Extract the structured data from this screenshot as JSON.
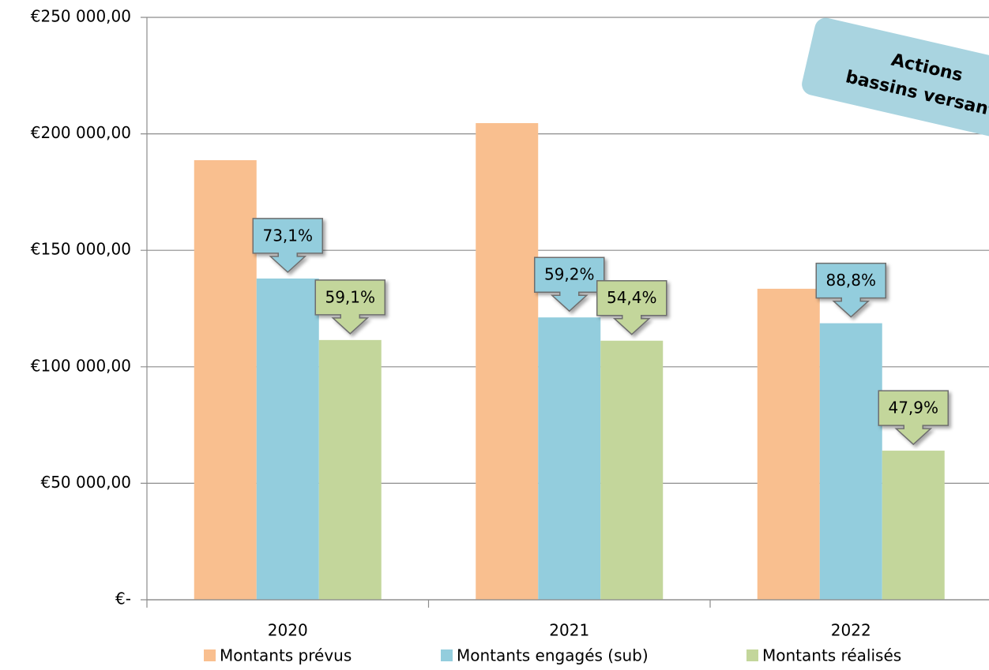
{
  "chart_data": {
    "type": "bar",
    "categories": [
      "2020",
      "2021",
      "2022"
    ],
    "series": [
      {
        "name": "Montants prévus",
        "color": "#f9bf8f",
        "values": [
          188700,
          204600,
          133500
        ]
      },
      {
        "name": "Montants engagés (sub)",
        "color": "#93cddd",
        "values": [
          137900,
          121200,
          118700
        ],
        "callouts": [
          "73,1%",
          "59,2%",
          "88,8%"
        ]
      },
      {
        "name": "Montants réalisés",
        "color": "#c3d69b",
        "values": [
          111500,
          111200,
          64000
        ],
        "callouts": [
          "59,1%",
          "54,4%",
          "47,9%"
        ]
      }
    ],
    "ylim": [
      0,
      250000
    ],
    "yticks": [
      {
        "value": 0,
        "label": "€-"
      },
      {
        "value": 50000,
        "label": "€50 000,00"
      },
      {
        "value": 100000,
        "label": "€100 000,00"
      },
      {
        "value": 150000,
        "label": "€150 000,00"
      },
      {
        "value": 200000,
        "label": "€200 000,00"
      },
      {
        "value": 250000,
        "label": "€250 000,00"
      }
    ],
    "grid": true,
    "legend": "bottom",
    "annotation": [
      "Actions",
      "bassins versant"
    ]
  }
}
